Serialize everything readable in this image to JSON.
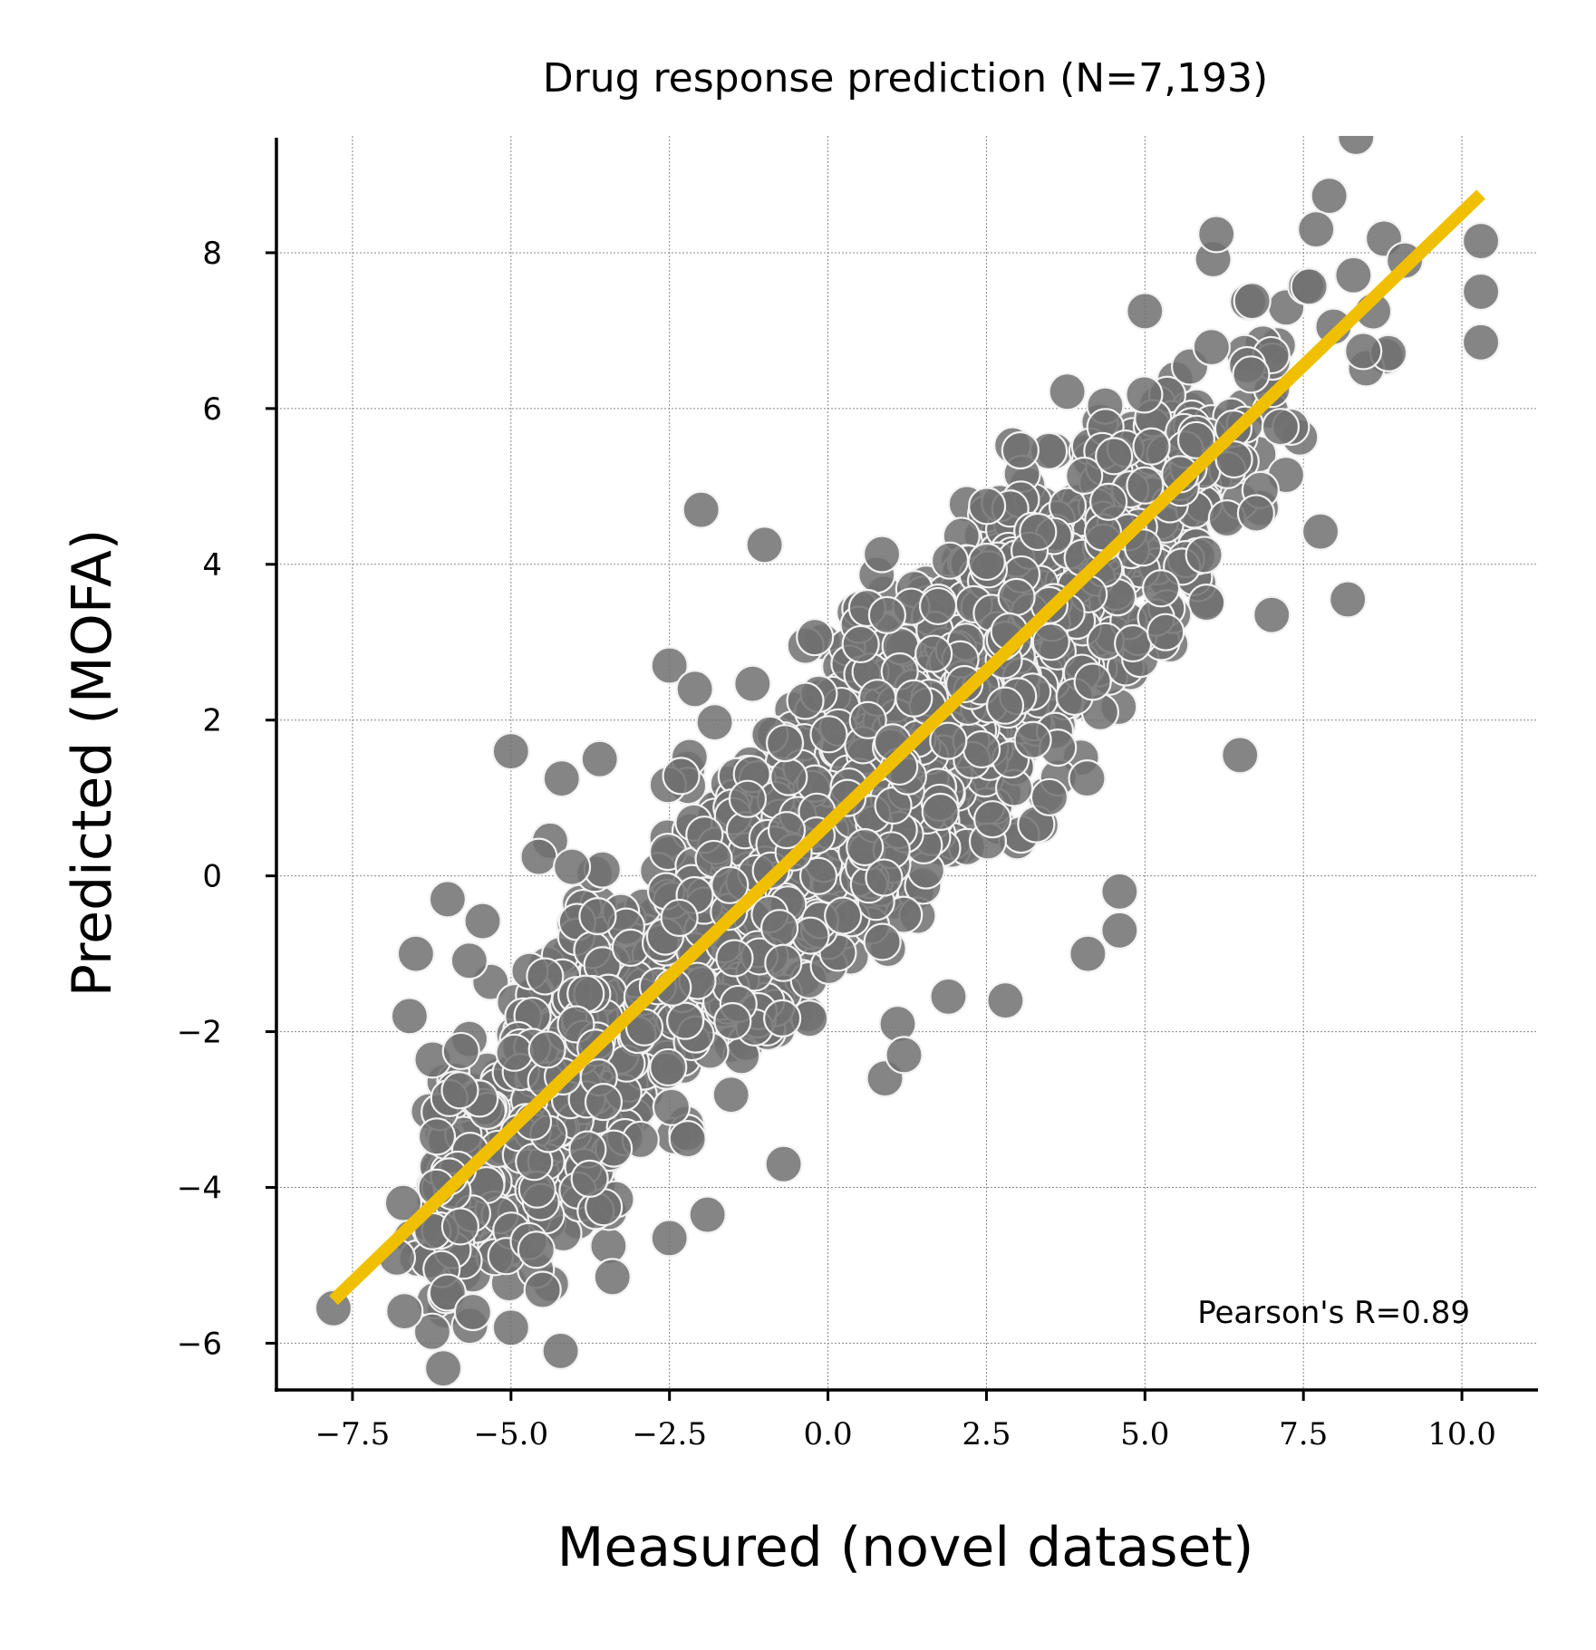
{
  "chart_data": {
    "type": "scatter",
    "title": "Drug response prediction (N=7,193)",
    "xlabel": "Measured (novel dataset)",
    "ylabel": "Predicted (MOFA)",
    "xlim": [
      -8.7,
      11.2
    ],
    "ylim": [
      -6.6,
      9.5
    ],
    "x_ticks": [
      -7.5,
      -5.0,
      -2.5,
      0.0,
      2.5,
      5.0,
      7.5,
      10.0
    ],
    "x_tick_labels": [
      "−7.5",
      "−5.0",
      "−2.5",
      "0.0",
      "2.5",
      "5.0",
      "7.5",
      "10.0"
    ],
    "y_ticks": [
      -6,
      -4,
      -2,
      0,
      2,
      4,
      6,
      8
    ],
    "y_tick_labels": [
      "−6",
      "−4",
      "−2",
      "0",
      "2",
      "4",
      "6",
      "8"
    ],
    "grid": true,
    "annotation": "Pearson's R=0.89",
    "n_points": 7193,
    "pearson_r": 0.89,
    "point_color": "#707070",
    "point_edge_color": "#f2f2f2",
    "fit_line_color": "#f0c000",
    "fit_line": {
      "x": [
        -7.8,
        10.3
      ],
      "y": [
        -5.45,
        8.75
      ]
    },
    "series": [
      {
        "outliers": [
          [
            -7.8,
            -5.55
          ],
          [
            -6.8,
            -4.9
          ],
          [
            -6.7,
            -4.2
          ],
          [
            -6.6,
            -1.8
          ],
          [
            -6.5,
            -1.0
          ],
          [
            -6.0,
            -0.3
          ],
          [
            -6.0,
            -5.35
          ],
          [
            -5.6,
            -5.6
          ],
          [
            -5.0,
            -5.8
          ],
          [
            -5.0,
            1.6
          ],
          [
            -4.2,
            1.25
          ],
          [
            -3.6,
            1.5
          ],
          [
            -3.4,
            -5.15
          ],
          [
            -2.5,
            -4.65
          ],
          [
            -2.5,
            2.7
          ],
          [
            -2.1,
            2.4
          ],
          [
            -2.0,
            4.7
          ],
          [
            -1.9,
            -4.35
          ],
          [
            -1.0,
            4.25
          ],
          [
            -0.7,
            -3.7
          ],
          [
            1.1,
            -1.9
          ],
          [
            1.9,
            -1.55
          ],
          [
            2.8,
            -1.6
          ],
          [
            4.1,
            -1.0
          ],
          [
            4.6,
            -0.7
          ],
          [
            4.6,
            -0.2
          ],
          [
            6.5,
            1.55
          ],
          [
            7.0,
            3.35
          ],
          [
            8.2,
            3.55
          ],
          [
            9.1,
            7.9
          ],
          [
            10.3,
            8.15
          ],
          [
            10.3,
            7.5
          ],
          [
            10.3,
            6.85
          ],
          [
            7.7,
            8.3
          ],
          [
            5.0,
            7.25
          ],
          [
            0.9,
            -2.6
          ],
          [
            1.2,
            -2.3
          ],
          [
            -5.8,
            -4.5
          ],
          [
            -4.6,
            -4.8
          ]
        ]
      }
    ]
  }
}
